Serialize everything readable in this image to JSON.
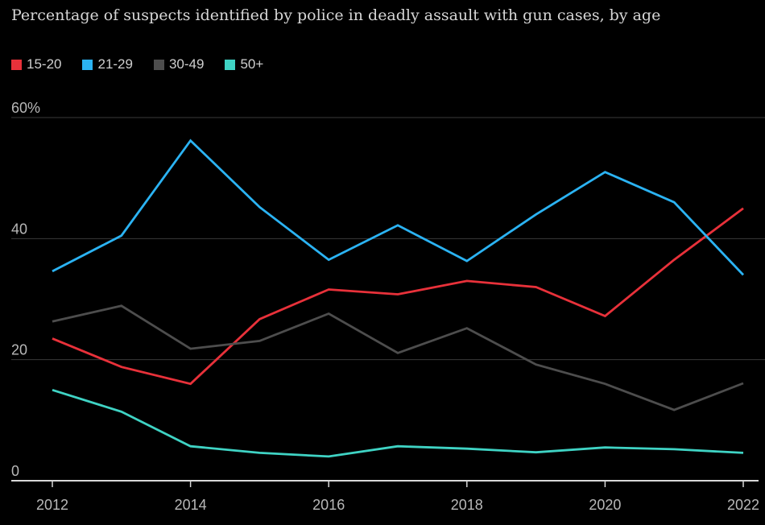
{
  "chart_data": {
    "type": "line",
    "title": "Percentage of suspects identified by police in deadly assault with gun cases, by age",
    "x": [
      2012,
      2013,
      2014,
      2015,
      2016,
      2017,
      2018,
      2019,
      2020,
      2021,
      2022
    ],
    "x_tick_labels": [
      "2012",
      "2014",
      "2016",
      "2018",
      "2020",
      "2022"
    ],
    "x_tick_values": [
      2012,
      2014,
      2016,
      2018,
      2020,
      2022
    ],
    "y_tick_labels": [
      "60%",
      "40",
      "20",
      "0"
    ],
    "y_tick_values": [
      60,
      40,
      20,
      0
    ],
    "ylim": [
      0,
      60
    ],
    "xlim": [
      2012,
      2022
    ],
    "grid": true,
    "legend_position": "top-left",
    "series": [
      {
        "name": "15-20",
        "color": "#e8313a",
        "values": [
          23.5,
          18.8,
          16.0,
          26.7,
          31.6,
          30.8,
          33.0,
          32.0,
          27.2,
          36.5,
          45.0
        ]
      },
      {
        "name": "21-29",
        "color": "#2bb3f3",
        "values": [
          34.6,
          40.5,
          56.2,
          45.2,
          36.5,
          42.2,
          36.3,
          44.0,
          51.0,
          46.0,
          34.0
        ]
      },
      {
        "name": "30-49",
        "color": "#4d4d4d",
        "values": [
          26.3,
          28.9,
          21.8,
          23.1,
          27.6,
          21.1,
          25.2,
          19.2,
          16.0,
          11.7,
          16.1
        ]
      },
      {
        "name": "50+",
        "color": "#3fd3c4",
        "values": [
          15.0,
          11.4,
          5.7,
          4.6,
          4.0,
          5.7,
          5.3,
          4.7,
          5.5,
          5.2,
          4.6
        ]
      }
    ]
  }
}
